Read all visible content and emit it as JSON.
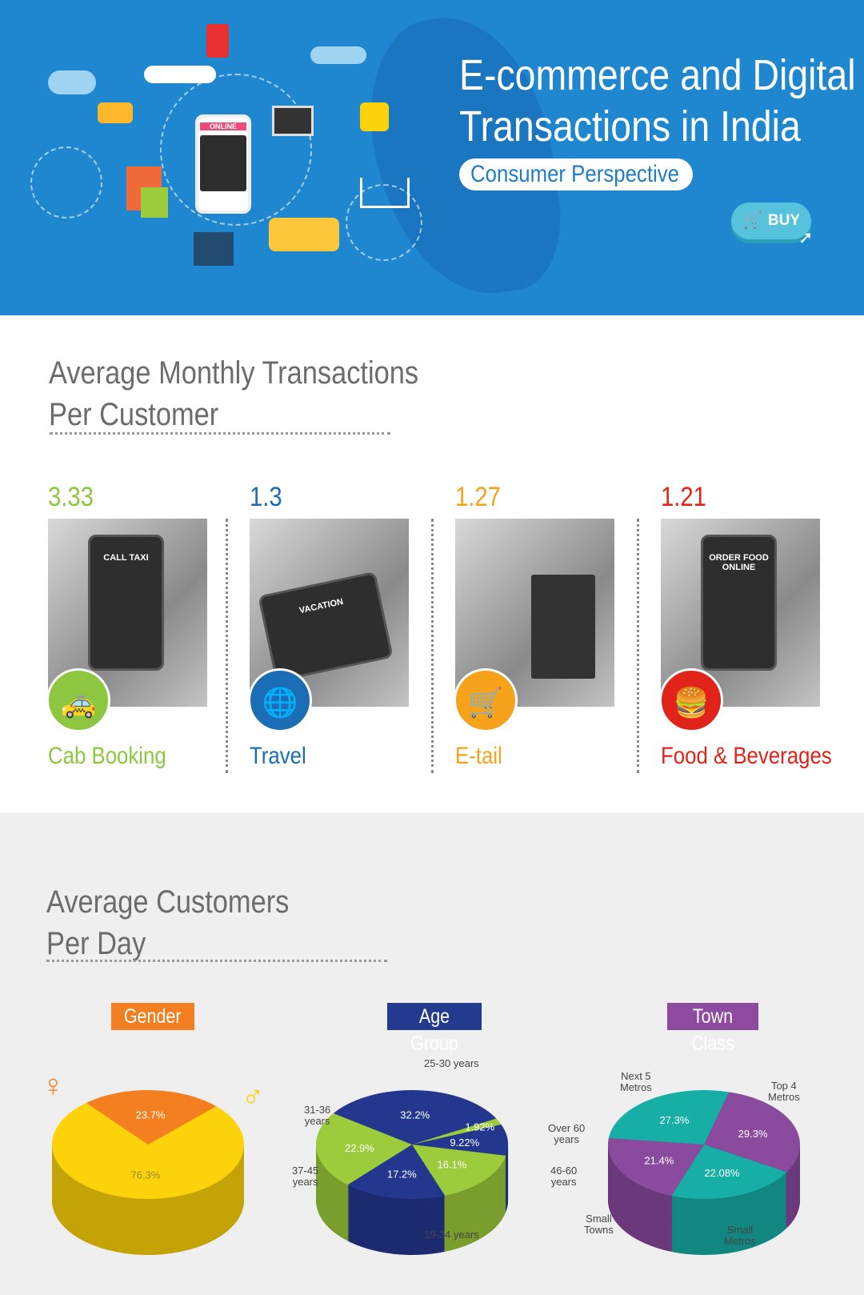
{
  "header": {
    "title_line1": "E-commerce and Digital",
    "title_line2": "Transactions in India",
    "subtitle": "Consumer Perspective",
    "buy_label": "BUY",
    "phone_label": "ONLINE"
  },
  "transactions": {
    "title_line1": "Average Monthly Transactions",
    "title_line2": "Per Customer",
    "items": [
      {
        "value": "3.33",
        "label": "Cab Booking",
        "color": "#8dc63f",
        "icon": "taxi-icon",
        "screen": "CALL TAXI"
      },
      {
        "value": "1.3",
        "label": "Travel",
        "color": "#1b6db5",
        "icon": "globe-plane-icon",
        "screen": "VACATION"
      },
      {
        "value": "1.27",
        "label": "E-tail",
        "color": "#f7a21b",
        "icon": "shopping-cart-screen-icon",
        "screen": ""
      },
      {
        "value": "1.21",
        "label": "Food & Beverages",
        "color": "#e2231a",
        "icon": "burger-icon",
        "screen": "ORDER FOOD ONLINE"
      }
    ]
  },
  "customers": {
    "title_line1": "Average Customers",
    "title_line2": "Per Day"
  },
  "chart_data": [
    {
      "type": "pie",
      "title": "Gender",
      "title_color": "#f47f20",
      "categories": [
        "Female",
        "Male"
      ],
      "values": [
        23.7,
        76.3
      ],
      "labels": [
        "23.7%",
        "76.3%"
      ],
      "colors": [
        "#f47f20",
        "#fcd20a"
      ]
    },
    {
      "type": "pie",
      "title": "Age Group",
      "title_color": "#233a8e",
      "categories": [
        "25-30 years",
        "Over 60 years",
        "46-60 years",
        "19-24 years",
        "37-45 years",
        "31-36 years"
      ],
      "values": [
        32.2,
        1.92,
        9.22,
        16.1,
        17.2,
        22.9
      ],
      "labels": [
        "32.2%",
        "1.92%",
        "9.22%",
        "16.1%",
        "17.2%",
        "22.9%"
      ],
      "colors": [
        "#24378f",
        "#9ccb3b",
        "#24378f",
        "#9ccb3b",
        "#24378f",
        "#9ccb3b"
      ]
    },
    {
      "type": "pie",
      "title": "Town Class",
      "title_color": "#8e4a9e",
      "categories": [
        "Top 4 Metros",
        "Small Metros",
        "Small Towns",
        "Next 5 Metros"
      ],
      "values": [
        29.3,
        22.08,
        21.4,
        27.3
      ],
      "labels": [
        "29.3%",
        "22.08%",
        "21.4%",
        "27.3%"
      ],
      "colors": [
        "#8a4a9e",
        "#17aea5",
        "#8a4a9e",
        "#17aea5"
      ]
    }
  ]
}
